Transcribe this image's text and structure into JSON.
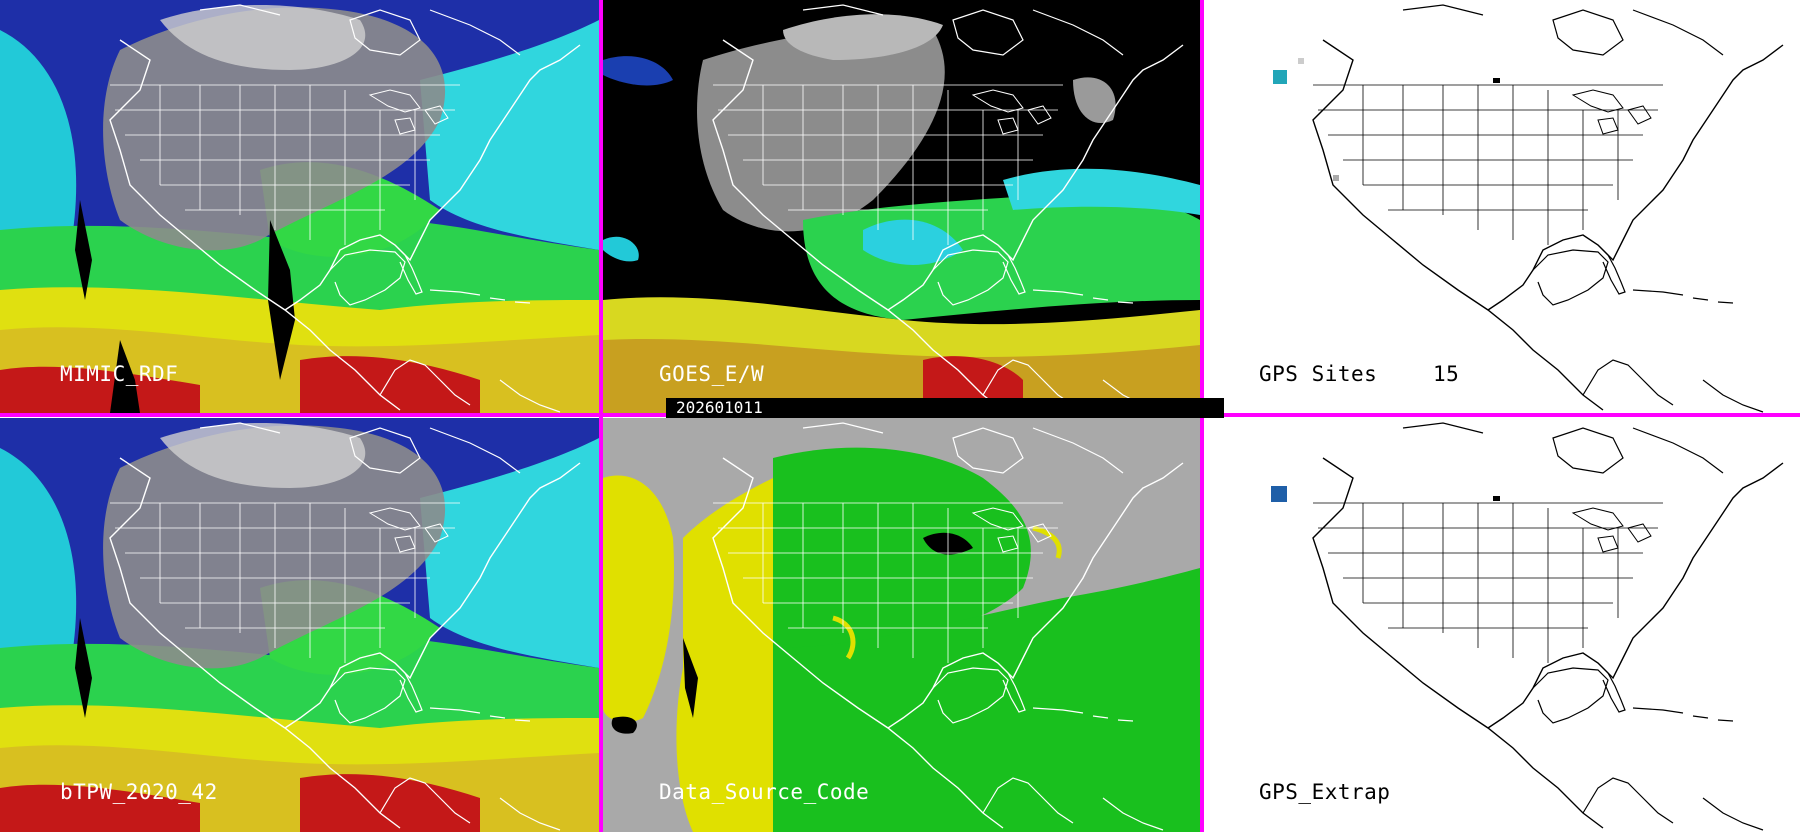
{
  "panels": [
    {
      "label": "MIMIC_RDF",
      "value": ""
    },
    {
      "label": "GOES_E/W",
      "value": ""
    },
    {
      "label": "GPS Sites",
      "value": "15"
    },
    {
      "label": "bTPW_2020_42",
      "value": ""
    },
    {
      "label": "Data_Source_Code",
      "value": ""
    },
    {
      "label": "GPS_Extrap",
      "value": ""
    }
  ],
  "timestamp": "202601011",
  "colors": {
    "border": "#ff00ff",
    "coastline_dark": "#ffffff",
    "coastline_light": "#000000",
    "tpw_low": "#1a3fb0",
    "tpw_mid": "#19d35a",
    "tpw_high": "#e6e600",
    "tpw_max": "#cc1010",
    "source_a": "#e0e000",
    "source_b": "#19c01e"
  },
  "icons": [
    "map-coastline",
    "state-boundaries"
  ]
}
